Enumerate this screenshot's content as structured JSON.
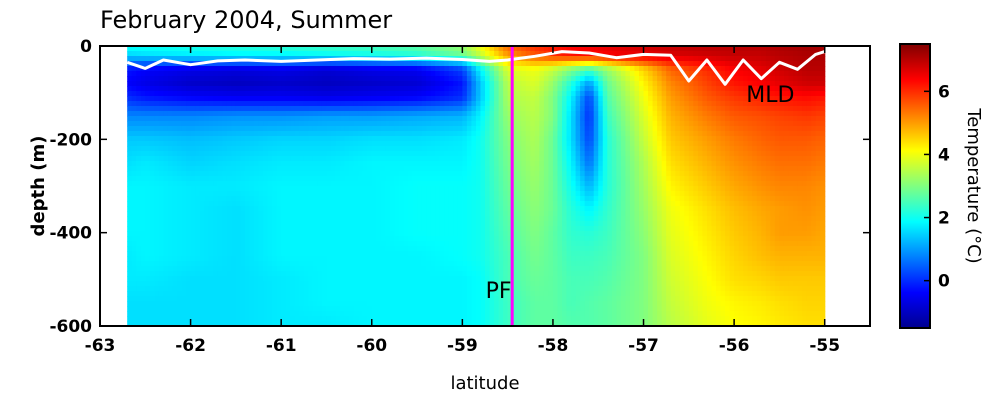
{
  "chart_data": {
    "type": "heatmap",
    "title": "February 2004, Summer",
    "xlabel": "latitude",
    "ylabel": "depth (m)",
    "colorbar_label": "Temperature (°C)",
    "xlim": [
      -63,
      -54.5
    ],
    "ylim": [
      -600,
      0
    ],
    "xticks": [
      -63,
      -62,
      -61,
      -60,
      -59,
      -58,
      -57,
      -56,
      -55
    ],
    "yticks": [
      0,
      -200,
      -400,
      -600
    ],
    "colorbar_range": [
      -1.5,
      7.5
    ],
    "colorbar_ticks": [
      0,
      2,
      4,
      6
    ],
    "colormap": [
      "#00008f",
      "#0000ff",
      "#0080ff",
      "#00ffff",
      "#80ff80",
      "#ffff00",
      "#ff8000",
      "#ff0000",
      "#800000"
    ],
    "data_extent": {
      "lat": [
        -62.7,
        -55
      ],
      "depth": [
        0,
        -600
      ]
    },
    "lat_grid": [
      -62.7,
      -62.5,
      -62,
      -61.5,
      -61,
      -60.5,
      -60,
      -59.5,
      -59,
      -58.8,
      -58.5,
      -58.2,
      -58,
      -57.8,
      -57.6,
      -57.4,
      -57,
      -56.7,
      -56.3,
      -56,
      -55.7,
      -55.5,
      -55.2,
      -55
    ],
    "depth_grid": [
      0,
      -20,
      -50,
      -80,
      -110,
      -150,
      -200,
      -250,
      -300,
      -350,
      -400,
      -450,
      -500,
      -550,
      -600
    ],
    "temperature": [
      [
        2.0,
        2.0,
        2.1,
        2.2,
        2.3,
        2.4,
        2.5,
        2.7,
        3.2,
        4.0,
        5.5,
        6.0,
        6.2,
        6.4,
        6.5,
        6.6,
        6.8,
        6.9,
        7.0,
        7.0,
        7.0,
        7.1,
        7.2,
        7.2
      ],
      [
        1.5,
        1.6,
        1.7,
        1.8,
        1.8,
        1.9,
        2.0,
        2.2,
        2.8,
        3.6,
        5.0,
        5.6,
        6.0,
        6.2,
        6.3,
        6.4,
        6.6,
        6.7,
        6.8,
        6.9,
        6.9,
        7.0,
        7.1,
        7.1
      ],
      [
        -0.2,
        -0.4,
        -0.6,
        -0.7,
        -0.6,
        -0.8,
        -0.6,
        -0.5,
        0.2,
        1.8,
        3.8,
        4.0,
        3.6,
        3.0,
        2.5,
        3.2,
        4.5,
        5.5,
        6.0,
        6.4,
        6.6,
        6.8,
        7.0,
        7.0
      ],
      [
        -0.4,
        -0.6,
        -0.9,
        -1.0,
        -0.9,
        -1.0,
        -0.9,
        -0.8,
        -0.2,
        1.4,
        3.5,
        3.8,
        3.2,
        2.2,
        1.0,
        2.8,
        4.2,
        5.2,
        5.8,
        6.2,
        6.4,
        6.6,
        6.8,
        6.8
      ],
      [
        0.0,
        -0.2,
        -0.4,
        -0.5,
        -0.5,
        -0.6,
        -0.5,
        -0.4,
        0.0,
        1.4,
        3.4,
        3.6,
        3.0,
        1.8,
        0.2,
        2.6,
        4.0,
        5.0,
        5.6,
        5.9,
        6.1,
        6.2,
        6.3,
        6.2
      ],
      [
        0.8,
        0.8,
        0.8,
        0.9,
        0.9,
        1.0,
        1.0,
        1.1,
        1.2,
        1.8,
        3.2,
        3.5,
        3.0,
        1.6,
        0.0,
        2.4,
        3.8,
        4.8,
        5.3,
        5.6,
        5.7,
        5.8,
        5.9,
        5.8
      ],
      [
        1.4,
        1.4,
        1.3,
        1.4,
        1.5,
        1.5,
        1.6,
        1.6,
        1.7,
        2.0,
        3.0,
        3.4,
        2.8,
        1.6,
        0.2,
        2.2,
        3.6,
        4.6,
        5.0,
        5.3,
        5.5,
        5.6,
        5.6,
        5.5
      ],
      [
        1.6,
        1.7,
        1.5,
        1.6,
        1.7,
        1.7,
        1.8,
        1.8,
        1.8,
        2.0,
        2.9,
        3.3,
        2.8,
        1.8,
        0.6,
        2.2,
        3.4,
        4.4,
        4.8,
        5.1,
        5.3,
        5.4,
        5.4,
        5.3
      ],
      [
        1.8,
        1.8,
        1.7,
        1.7,
        1.8,
        1.8,
        1.8,
        1.9,
        1.9,
        2.0,
        2.8,
        3.2,
        2.8,
        2.0,
        1.2,
        2.2,
        3.3,
        4.2,
        4.6,
        4.9,
        5.1,
        5.2,
        5.2,
        5.1
      ],
      [
        1.8,
        1.8,
        1.7,
        1.6,
        1.8,
        1.8,
        1.8,
        1.9,
        1.9,
        2.0,
        2.7,
        3.1,
        2.8,
        2.2,
        1.8,
        2.3,
        3.2,
        4.0,
        4.4,
        4.7,
        4.9,
        5.0,
        5.1,
        5.0
      ],
      [
        1.8,
        1.8,
        1.7,
        1.6,
        1.8,
        1.8,
        1.8,
        1.9,
        1.9,
        2.0,
        2.6,
        3.0,
        2.7,
        2.3,
        2.2,
        2.4,
        3.1,
        3.9,
        4.3,
        4.6,
        4.8,
        5.0,
        5.0,
        4.9
      ],
      [
        1.7,
        1.8,
        1.7,
        1.6,
        1.8,
        1.8,
        1.8,
        1.8,
        1.9,
        2.0,
        2.5,
        2.9,
        2.7,
        2.4,
        2.4,
        2.5,
        3.0,
        3.8,
        4.2,
        4.5,
        4.7,
        4.8,
        4.8,
        4.8
      ],
      [
        1.7,
        1.7,
        1.6,
        1.6,
        1.7,
        1.8,
        1.8,
        1.8,
        1.8,
        1.9,
        2.5,
        2.8,
        2.7,
        2.5,
        2.5,
        2.6,
        3.0,
        3.7,
        4.1,
        4.4,
        4.5,
        4.6,
        4.6,
        4.6
      ],
      [
        1.6,
        1.6,
        1.6,
        1.6,
        1.7,
        1.8,
        1.8,
        1.8,
        1.8,
        1.9,
        2.4,
        2.7,
        2.7,
        2.5,
        2.6,
        2.7,
        3.0,
        3.6,
        4.0,
        4.2,
        4.3,
        4.4,
        4.5,
        4.5
      ],
      [
        1.6,
        1.6,
        1.6,
        1.6,
        1.7,
        1.7,
        1.8,
        1.8,
        1.8,
        1.9,
        2.4,
        2.7,
        2.7,
        2.6,
        2.6,
        2.7,
        3.0,
        3.5,
        3.9,
        4.1,
        4.2,
        4.3,
        4.4,
        4.4
      ]
    ],
    "mld": {
      "name": "MLD",
      "lat": [
        -62.7,
        -62.5,
        -62.3,
        -62.0,
        -61.7,
        -61.4,
        -61.0,
        -60.6,
        -60.2,
        -59.8,
        -59.4,
        -59.0,
        -58.7,
        -58.5,
        -58.2,
        -57.9,
        -57.6,
        -57.3,
        -57.0,
        -56.7,
        -56.5,
        -56.3,
        -56.1,
        -55.9,
        -55.7,
        -55.5,
        -55.3,
        -55.1,
        -55.0
      ],
      "depth": [
        -35,
        -48,
        -30,
        -40,
        -32,
        -30,
        -33,
        -30,
        -27,
        -28,
        -26,
        -29,
        -33,
        -30,
        -22,
        -12,
        -15,
        -25,
        -18,
        -20,
        -75,
        -30,
        -82,
        -30,
        -70,
        -35,
        -50,
        -18,
        -12
      ]
    },
    "fronts": [
      {
        "name": "PF",
        "lat": -58.45,
        "color": "#ff00ff"
      }
    ],
    "annotations": [
      {
        "text": "MLD",
        "lat": -55.6,
        "depth": -120
      },
      {
        "text": "PF",
        "lat": -58.6,
        "depth": -540
      }
    ]
  }
}
